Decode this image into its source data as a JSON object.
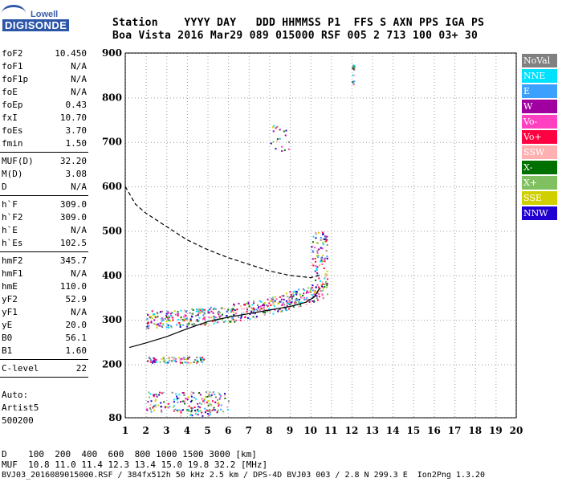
{
  "logo": {
    "brand_top": "Lowell",
    "brand_bottom": "DIGISONDE"
  },
  "header": {
    "line1": "Station    YYYY DAY   DDD HHMMSS P1  FFS S AXN PPS IGA PS",
    "line2": "Boa Vista 2016 Mar29 089 015000 RSF 005 2 713 100 03+ 30"
  },
  "params_groups": [
    [
      {
        "label": "foF2",
        "value": "10.450"
      },
      {
        "label": "foF1",
        "value": "N/A"
      },
      {
        "label": "foF1p",
        "value": "N/A"
      },
      {
        "label": "foE",
        "value": "N/A"
      },
      {
        "label": "foEp",
        "value": "0.43"
      },
      {
        "label": "fxI",
        "value": "10.70"
      },
      {
        "label": "foEs",
        "value": "3.70"
      },
      {
        "label": "fmin",
        "value": "1.50"
      }
    ],
    [
      {
        "label": "MUF(D)",
        "value": "32.20"
      },
      {
        "label": "M(D)",
        "value": "3.08"
      },
      {
        "label": "D",
        "value": "N/A"
      }
    ],
    [
      {
        "label": "h`F",
        "value": "309.0"
      },
      {
        "label": "h`F2",
        "value": "309.0"
      },
      {
        "label": "h`E",
        "value": "N/A"
      },
      {
        "label": "h`Es",
        "value": "102.5"
      }
    ],
    [
      {
        "label": "hmF2",
        "value": "345.7"
      },
      {
        "label": "hmF1",
        "value": "N/A"
      },
      {
        "label": "hmE",
        "value": "110.0"
      },
      {
        "label": "yF2",
        "value": "52.9"
      },
      {
        "label": "yF1",
        "value": "N/A"
      },
      {
        "label": "yE",
        "value": "20.0"
      },
      {
        "label": "B0",
        "value": "56.1"
      },
      {
        "label": "B1",
        "value": "1.60"
      }
    ],
    [
      {
        "label": "C-level",
        "value": "22"
      }
    ]
  ],
  "autoscaling": {
    "line1": "Auto:",
    "line2": "Artist5",
    "line3": "500200"
  },
  "legend": [
    {
      "label": "NoVal",
      "color": "#808080"
    },
    {
      "label": "NNE",
      "color": "#00e0ff"
    },
    {
      "label": "E",
      "color": "#3ca0ff"
    },
    {
      "label": "W",
      "color": "#a000a0"
    },
    {
      "label": "Vo-",
      "color": "#ff40c0"
    },
    {
      "label": "Vo+",
      "color": "#ff0040"
    },
    {
      "label": "SSW",
      "color": "#ffb0b0"
    },
    {
      "label": "X-",
      "color": "#007000"
    },
    {
      "label": "X+",
      "color": "#80c060"
    },
    {
      "label": "SSE",
      "color": "#d0d000"
    },
    {
      "label": "NNW",
      "color": "#2000d0"
    }
  ],
  "bottom": {
    "d_line": "D    100  200  400  600  800 1000 1500 3000 [km]",
    "muf_line": "MUF  10.8 11.0 11.4 12.3 13.4 15.0 19.8 32.2 [MHz]",
    "file_line": "BVJ03_2016089015000.RSF / 384fx512h 50 kHz 2.5 km / DPS-4D BVJ03 003 / 2.8 N 299.3 E  Ion2Png 1.3.20"
  },
  "chart_data": {
    "type": "scatter",
    "xlim": [
      1,
      20
    ],
    "ylim": [
      80,
      900
    ],
    "x_ticks": [
      1,
      2,
      3,
      4,
      5,
      6,
      7,
      8,
      9,
      10,
      11,
      12,
      13,
      14,
      15,
      16,
      17,
      18,
      19,
      20
    ],
    "y_ticks": [
      80,
      200,
      300,
      400,
      500,
      600,
      700,
      800,
      900
    ],
    "grid": true,
    "legend_position": "right",
    "virtual_height_trace_solid": [
      [
        1.2,
        238
      ],
      [
        2,
        248
      ],
      [
        3,
        262
      ],
      [
        4,
        280
      ],
      [
        5,
        296
      ],
      [
        6,
        306
      ],
      [
        7,
        314
      ],
      [
        8,
        322
      ],
      [
        9,
        330
      ],
      [
        9.8,
        340
      ],
      [
        10.2,
        352
      ],
      [
        10.45,
        372
      ]
    ],
    "profile_dashed": [
      [
        1,
        600
      ],
      [
        1.5,
        560
      ],
      [
        2,
        540
      ],
      [
        3,
        510
      ],
      [
        4,
        480
      ],
      [
        5,
        458
      ],
      [
        6,
        440
      ],
      [
        7,
        425
      ],
      [
        8,
        410
      ],
      [
        9,
        400
      ],
      [
        10,
        395
      ],
      [
        10.45,
        400
      ]
    ],
    "echo_clusters": [
      {
        "x_range": [
          2,
          10.8
        ],
        "h_range": [
          290,
          440
        ],
        "note": "F2 trace"
      },
      {
        "x_range": [
          2,
          4.8
        ],
        "h_range": [
          205,
          218
        ],
        "note": "2nd hop Es"
      },
      {
        "x_range": [
          2,
          6
        ],
        "h_range": [
          95,
          140
        ],
        "note": "Es layer"
      },
      {
        "x_range": [
          3.5,
          5.5
        ],
        "h_range": [
          85,
          100
        ],
        "note": "low echoes"
      },
      {
        "x_range": [
          10,
          10.8
        ],
        "h_range": [
          380,
          500
        ],
        "note": "F2 cusp"
      },
      {
        "x_range": [
          8,
          9
        ],
        "h_range": [
          680,
          740
        ],
        "note": "multi-hop"
      },
      {
        "x_range": [
          12,
          12.1
        ],
        "h_range": [
          825,
          875
        ],
        "note": "interference"
      }
    ]
  }
}
